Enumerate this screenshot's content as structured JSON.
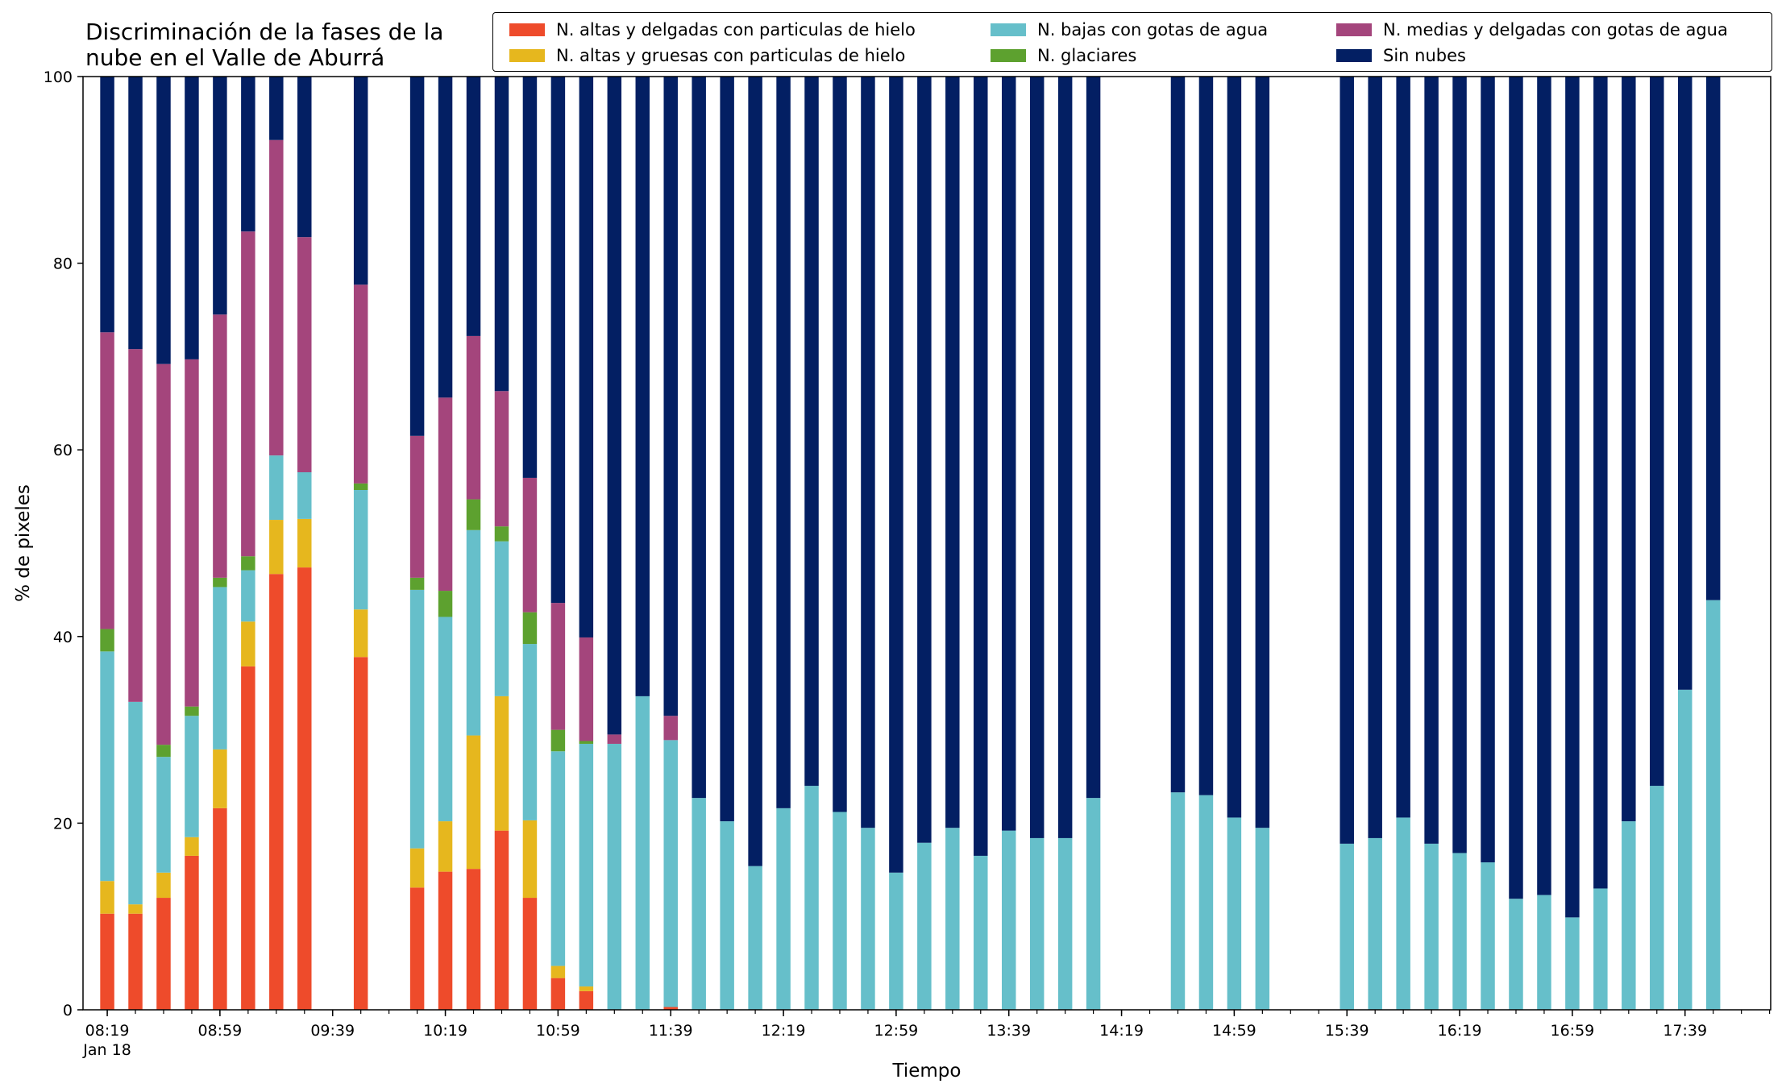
{
  "chart_data": {
    "type": "bar",
    "stacked": true,
    "title": "Discriminación de la fases de la\nnube en el Valle de Aburrá",
    "xlabel": "Tiempo",
    "ylabel": "% de pixeles",
    "ylim": [
      0,
      100
    ],
    "yticks": [
      0,
      20,
      40,
      60,
      80,
      100
    ],
    "legend_position": "top-right",
    "grid": false,
    "x_tick_labels": [
      "08:19",
      "08:59",
      "09:39",
      "10:19",
      "10:59",
      "11:39",
      "12:19",
      "12:59",
      "13:39",
      "14:19",
      "14:59",
      "15:39",
      "16:19",
      "16:59",
      "17:39"
    ],
    "x_tick_sublabel": "Jan 18",
    "x_start": "08:19",
    "x_end": "18:09",
    "bar_interval_minutes": 10,
    "categories": [
      "08:19",
      "08:29",
      "08:39",
      "08:49",
      "08:59",
      "09:09",
      "09:19",
      "09:29",
      "09:39",
      "09:49",
      "09:59",
      "10:09",
      "10:19",
      "10:29",
      "10:39",
      "10:49",
      "10:59",
      "11:09",
      "11:19",
      "11:29",
      "11:39",
      "11:49",
      "11:59",
      "12:09",
      "12:19",
      "12:29",
      "12:39",
      "12:49",
      "12:59",
      "13:09",
      "13:19",
      "13:29",
      "13:39",
      "13:49",
      "13:59",
      "14:09",
      "14:19",
      "14:29",
      "14:39",
      "14:49",
      "14:59",
      "15:09",
      "15:19",
      "15:29",
      "15:39",
      "15:49",
      "15:59",
      "16:09",
      "16:19",
      "16:29",
      "16:39",
      "16:49",
      "16:59",
      "17:09",
      "17:19",
      "17:29",
      "17:39",
      "17:49"
    ],
    "series": [
      {
        "name": "N. altas y delgadas con particulas de hielo",
        "color": "#ee4b2b",
        "values": [
          10.3,
          10.3,
          12,
          16.5,
          21.6,
          36.8,
          46.7,
          47.4,
          null,
          37.8,
          null,
          13.1,
          14.8,
          15.1,
          19.2,
          12,
          3.4,
          2,
          0,
          0,
          0.3,
          0,
          0,
          0,
          0,
          0,
          0,
          0,
          0,
          0,
          0,
          0,
          0,
          0,
          0,
          0,
          null,
          null,
          0,
          0,
          0,
          0,
          null,
          null,
          0,
          0,
          0,
          0,
          0,
          0,
          0,
          0,
          0,
          0,
          0,
          0,
          0,
          0
        ]
      },
      {
        "name": "N. altas y gruesas con particulas de hielo",
        "color": "#e6b71e",
        "values": [
          3.5,
          1,
          2.7,
          2,
          6.3,
          4.8,
          5.8,
          5.2,
          null,
          5.1,
          null,
          4.2,
          5.4,
          14.3,
          14.4,
          8.3,
          1.3,
          0.5,
          0,
          0,
          0,
          0,
          0,
          0,
          0,
          0,
          0,
          0,
          0,
          0,
          0,
          0,
          0,
          0,
          0,
          0,
          null,
          null,
          0,
          0,
          0,
          0,
          null,
          null,
          0,
          0,
          0,
          0,
          0,
          0,
          0,
          0,
          0,
          0,
          0,
          0,
          0,
          0
        ]
      },
      {
        "name": "N. bajas con gotas de agua",
        "color": "#66bfca",
        "values": [
          24.6,
          21.7,
          12.4,
          13,
          17.4,
          5.5,
          6.9,
          5,
          null,
          12.8,
          null,
          27.7,
          21.9,
          22,
          16.6,
          18.9,
          23,
          26,
          28.5,
          33.6,
          28.6,
          22.7,
          20.2,
          15.4,
          21.6,
          24,
          21.2,
          19.5,
          14.7,
          17.9,
          19.5,
          16.5,
          19.2,
          18.4,
          18.4,
          22.7,
          null,
          null,
          23.3,
          23,
          20.6,
          19.5,
          null,
          null,
          17.8,
          18.4,
          20.6,
          17.8,
          16.8,
          15.8,
          11.9,
          12.3,
          9.9,
          13,
          20.2,
          24,
          34.3,
          43.9
        ]
      },
      {
        "name": "N. glaciares",
        "color": "#5da12f",
        "values": [
          2.4,
          0,
          1.3,
          1,
          1,
          1.5,
          0,
          0,
          null,
          0.7,
          null,
          1.3,
          2.8,
          3.3,
          1.6,
          3.4,
          2.3,
          0.3,
          0,
          0,
          0,
          0,
          0,
          0,
          0,
          0,
          0,
          0,
          0,
          0,
          0,
          0,
          0,
          0,
          0,
          0,
          null,
          null,
          0,
          0,
          0,
          0,
          null,
          null,
          0,
          0,
          0,
          0,
          0,
          0,
          0,
          0,
          0,
          0,
          0,
          0,
          0,
          0
        ]
      },
      {
        "name": "N. medias y delgadas con gotas de agua",
        "color": "#a4457c",
        "values": [
          31.8,
          37.8,
          40.8,
          37.2,
          28.2,
          34.8,
          33.8,
          25.2,
          null,
          21.3,
          null,
          15.2,
          20.7,
          17.5,
          14.5,
          14.4,
          13.6,
          11.1,
          1,
          0,
          2.6,
          0,
          0,
          0,
          0,
          0,
          0,
          0,
          0,
          0,
          0,
          0,
          0,
          0,
          0,
          0,
          null,
          null,
          0,
          0,
          0,
          0,
          null,
          null,
          0,
          0,
          0,
          0,
          0,
          0,
          0,
          0,
          0,
          0,
          0,
          0,
          0,
          0
        ]
      },
      {
        "name": "Sin nubes",
        "color": "#031f63",
        "values": [
          27.4,
          29.2,
          30.8,
          30.3,
          25.5,
          16.6,
          6.8,
          17.2,
          null,
          22.3,
          null,
          38.5,
          34.4,
          27.8,
          33.7,
          43,
          56.4,
          60.1,
          70.5,
          66.4,
          68.5,
          77.3,
          79.8,
          84.6,
          78.4,
          76,
          78.8,
          80.5,
          85.3,
          82.1,
          80.5,
          83.5,
          80.8,
          81.6,
          81.6,
          77.3,
          null,
          null,
          76.7,
          77,
          79.4,
          80.5,
          null,
          null,
          82.2,
          81.6,
          79.4,
          82.2,
          83.2,
          84.2,
          88.1,
          87.7,
          90.1,
          87,
          79.8,
          76,
          65.7,
          56.1
        ]
      }
    ]
  }
}
